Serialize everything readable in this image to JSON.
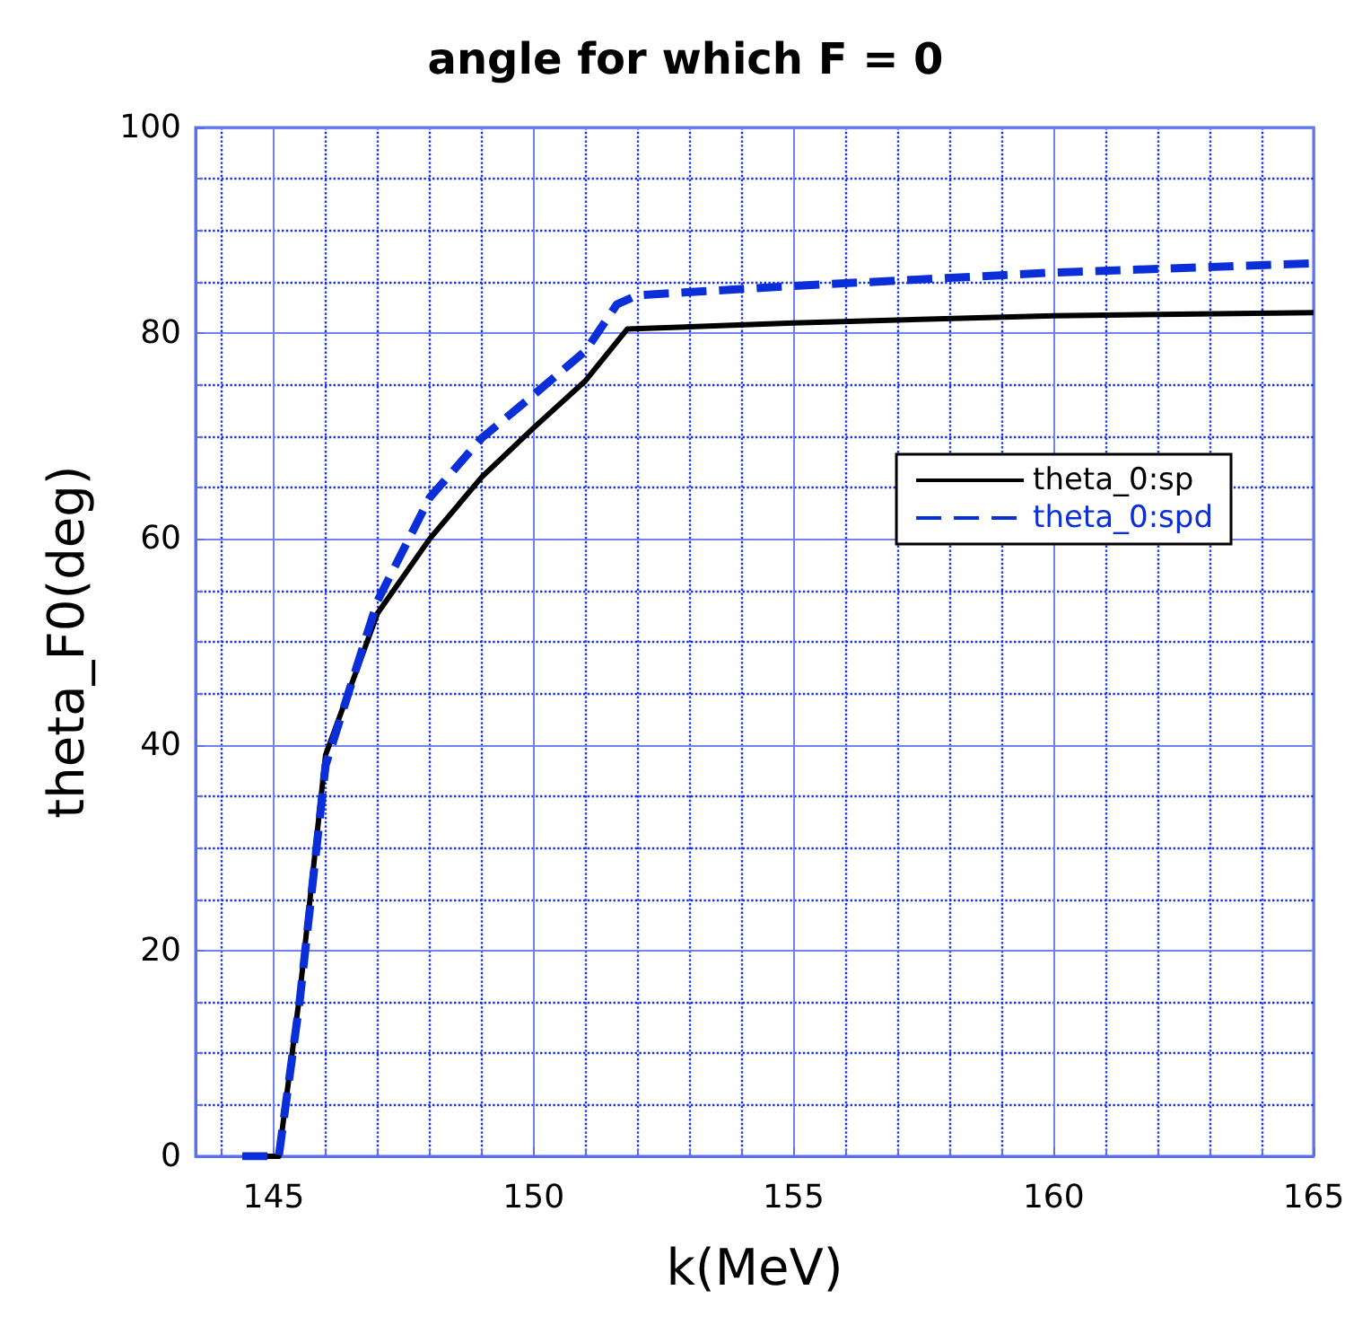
{
  "chart_data": {
    "type": "line",
    "title": "angle for which F = 0",
    "xlabel": "k(MeV)",
    "ylabel": "theta_F0(deg)",
    "xlim": [
      143.5,
      165
    ],
    "xticks": [
      {
        "value": 144,
        "label": null
      },
      145,
      {
        "value": 146,
        "label": null
      },
      {
        "value": 147,
        "label": null
      },
      {
        "value": 148,
        "label": null
      },
      {
        "value": 149,
        "label": null
      },
      150,
      {
        "value": 151,
        "label": null
      },
      {
        "value": 152,
        "label": null
      },
      {
        "value": 153,
        "label": null
      },
      {
        "value": 154,
        "label": null
      },
      155,
      {
        "value": 156,
        "label": null
      },
      {
        "value": 157,
        "label": null
      },
      {
        "value": 158,
        "label": null
      },
      {
        "value": 159,
        "label": null
      },
      160,
      {
        "value": 161,
        "label": null
      },
      {
        "value": 162,
        "label": null
      },
      {
        "value": 163,
        "label": null
      },
      {
        "value": 164,
        "label": null
      },
      165
    ],
    "ylim": [
      0,
      100
    ],
    "yticks": [
      0,
      {
        "value": 5,
        "label": null
      },
      {
        "value": 10,
        "label": null
      },
      {
        "value": 15,
        "label": null
      },
      20,
      {
        "value": 25,
        "label": null
      },
      {
        "value": 30,
        "label": null
      },
      {
        "value": 35,
        "label": null
      },
      40,
      {
        "value": 45,
        "label": null
      },
      {
        "value": 50,
        "label": null
      },
      {
        "value": 55,
        "label": null
      },
      60,
      {
        "value": 65,
        "label": null
      },
      {
        "value": 70,
        "label": null
      },
      {
        "value": 75,
        "label": null
      },
      80,
      {
        "value": 85,
        "label": null
      },
      {
        "value": 90,
        "label": null
      },
      {
        "value": 95,
        "label": null
      },
      100
    ],
    "grid": true,
    "legend": "right",
    "marker": "none",
    "series": [
      {
        "name": "theta_0:sp",
        "color": "#000000",
        "line_style": "solid",
        "x": [
          144.4,
          145.1,
          145.5,
          146,
          147,
          148,
          149,
          150,
          151,
          151.8,
          155,
          160,
          165
        ],
        "values": [
          0,
          0,
          15.6,
          39,
          52.8,
          60,
          66,
          70.8,
          75.4,
          80.4,
          81,
          81.7,
          82
        ]
      },
      {
        "name": "theta_0:spd",
        "color": "#0a2fd9",
        "line_style": "dashed",
        "x": [
          144.4,
          145.1,
          145.5,
          146,
          147,
          148,
          149,
          150,
          151,
          151.6,
          152,
          155,
          160,
          165
        ],
        "values": [
          0,
          0,
          15,
          38,
          54,
          64,
          69.8,
          74,
          78.3,
          82.8,
          83.7,
          84.6,
          85.9,
          86.8
        ]
      }
    ]
  }
}
